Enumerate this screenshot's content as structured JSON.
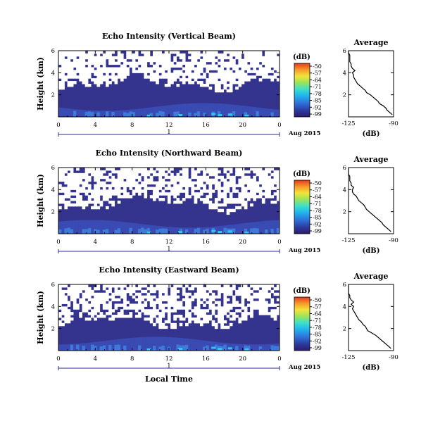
{
  "chart_data": [
    {
      "type": "heatmap",
      "title": "Echo Intensity (Vertical Beam)",
      "ylabel": "Height (km)",
      "xlabel": "",
      "x_ticks": [
        "0",
        "4",
        "8",
        "12",
        "16",
        "20",
        "0"
      ],
      "y_ticks": [
        "6",
        "4",
        "2"
      ],
      "xlim": [
        0,
        24
      ],
      "ylim": [
        0,
        6
      ],
      "date_day": "1",
      "date_label": "Aug 2015",
      "colorbar": {
        "label": "(dB)",
        "ticks": [
          "-50",
          "-57",
          "-64",
          "-71",
          "-78",
          "-85",
          "-92",
          "-99"
        ],
        "range": [
          -99,
          -50
        ]
      },
      "seed": 11,
      "cover_top": 2.8,
      "cover_amp": 0.45,
      "white_density": 0.82,
      "average": {
        "title": "Average",
        "xlabel": "(dB)",
        "x_ticks": [
          "-125",
          "-90"
        ],
        "y_ticks": [
          "6",
          "4",
          "2"
        ],
        "xlim": [
          -125,
          -90
        ],
        "ylim": [
          0,
          6
        ],
        "height_km": [
          0.2,
          0.4,
          0.6,
          0.8,
          1.0,
          1.2,
          1.4,
          1.6,
          1.8,
          2.0,
          2.2,
          2.4,
          2.6,
          2.8,
          3.0,
          3.2,
          3.4,
          3.6,
          3.8,
          4.0,
          4.2,
          4.4,
          4.6,
          4.8,
          5.0,
          5.2,
          5.4,
          5.6,
          5.8,
          6.0
        ],
        "db": [
          -91,
          -93,
          -95,
          -96,
          -98,
          -101,
          -102,
          -104,
          -106,
          -108,
          -111,
          -112,
          -114,
          -116,
          -118,
          -119,
          -120,
          -121,
          -121,
          -122,
          -120,
          -122,
          -123,
          -123,
          -124,
          -124,
          -124,
          -124,
          -125,
          -125
        ]
      }
    },
    {
      "type": "heatmap",
      "title": "Echo Intensity (Northward Beam)",
      "ylabel": "Height (km)",
      "xlabel": "",
      "x_ticks": [
        "0",
        "4",
        "8",
        "12",
        "16",
        "20",
        "0"
      ],
      "y_ticks": [
        "6",
        "4",
        "2"
      ],
      "xlim": [
        0,
        24
      ],
      "ylim": [
        0,
        6
      ],
      "date_day": "1",
      "date_label": "Aug 2015",
      "colorbar": {
        "label": "(dB)",
        "ticks": [
          "-50",
          "-57",
          "-64",
          "-71",
          "-78",
          "-85",
          "-92",
          "-99"
        ],
        "range": [
          -99,
          -50
        ]
      },
      "seed": 23,
      "cover_top": 2.5,
      "cover_amp": 0.55,
      "white_density": 0.75,
      "average": {
        "title": "Average",
        "xlabel": "(dB)",
        "x_ticks": [
          "-125",
          "-90"
        ],
        "y_ticks": [
          "6",
          "4",
          "2"
        ],
        "xlim": [
          -125,
          -90
        ],
        "ylim": [
          0,
          6
        ],
        "height_km": [
          0.2,
          0.4,
          0.6,
          0.8,
          1.0,
          1.2,
          1.4,
          1.6,
          1.8,
          2.0,
          2.2,
          2.4,
          2.6,
          2.8,
          3.0,
          3.2,
          3.4,
          3.6,
          3.8,
          4.0,
          4.2,
          4.4,
          4.6,
          4.8,
          5.0,
          5.2,
          5.4,
          5.6,
          5.8,
          6.0
        ],
        "db": [
          -92,
          -94,
          -96,
          -98,
          -99,
          -101,
          -103,
          -105,
          -107,
          -109,
          -111,
          -112,
          -113,
          -115,
          -117,
          -118,
          -119,
          -121,
          -122,
          -122,
          -121,
          -123,
          -123,
          -124,
          -124,
          -124,
          -125,
          -125,
          -125,
          -125
        ]
      }
    },
    {
      "type": "heatmap",
      "title": "Echo Intensity (Eastward Beam)",
      "ylabel": "Height (km)",
      "xlabel": "Local Time",
      "x_ticks": [
        "0",
        "4",
        "8",
        "12",
        "16",
        "20",
        "0"
      ],
      "y_ticks": [
        "6",
        "4",
        "2"
      ],
      "xlim": [
        0,
        24
      ],
      "ylim": [
        0,
        6
      ],
      "date_day": "1",
      "date_label": "Aug 2015",
      "colorbar": {
        "label": "(dB)",
        "ticks": [
          "-50",
          "-57",
          "-64",
          "-71",
          "-78",
          "-85",
          "-92",
          "-99"
        ],
        "range": [
          -99,
          -50
        ]
      },
      "seed": 37,
      "cover_top": 2.3,
      "cover_amp": 0.5,
      "white_density": 0.7,
      "average": {
        "title": "Average",
        "xlabel": "(dB)",
        "x_ticks": [
          "-125",
          "-90"
        ],
        "y_ticks": [
          "6",
          "4",
          "2"
        ],
        "xlim": [
          -125,
          -90
        ],
        "ylim": [
          0,
          6
        ],
        "height_km": [
          0.2,
          0.4,
          0.6,
          0.8,
          1.0,
          1.2,
          1.4,
          1.6,
          1.8,
          2.0,
          2.2,
          2.4,
          2.6,
          2.8,
          3.0,
          3.2,
          3.4,
          3.6,
          3.8,
          4.0,
          4.2,
          4.4,
          4.6,
          4.8,
          5.0,
          5.2,
          5.4,
          5.6,
          5.8,
          6.0
        ],
        "db": [
          -92,
          -94,
          -96,
          -98,
          -100,
          -102,
          -104,
          -107,
          -110,
          -111,
          -112,
          -114,
          -115,
          -117,
          -118,
          -119,
          -120,
          -121,
          -122,
          -121,
          -123,
          -121,
          -123,
          -124,
          -124,
          -125,
          -125,
          -125,
          -125,
          -125
        ]
      }
    }
  ]
}
